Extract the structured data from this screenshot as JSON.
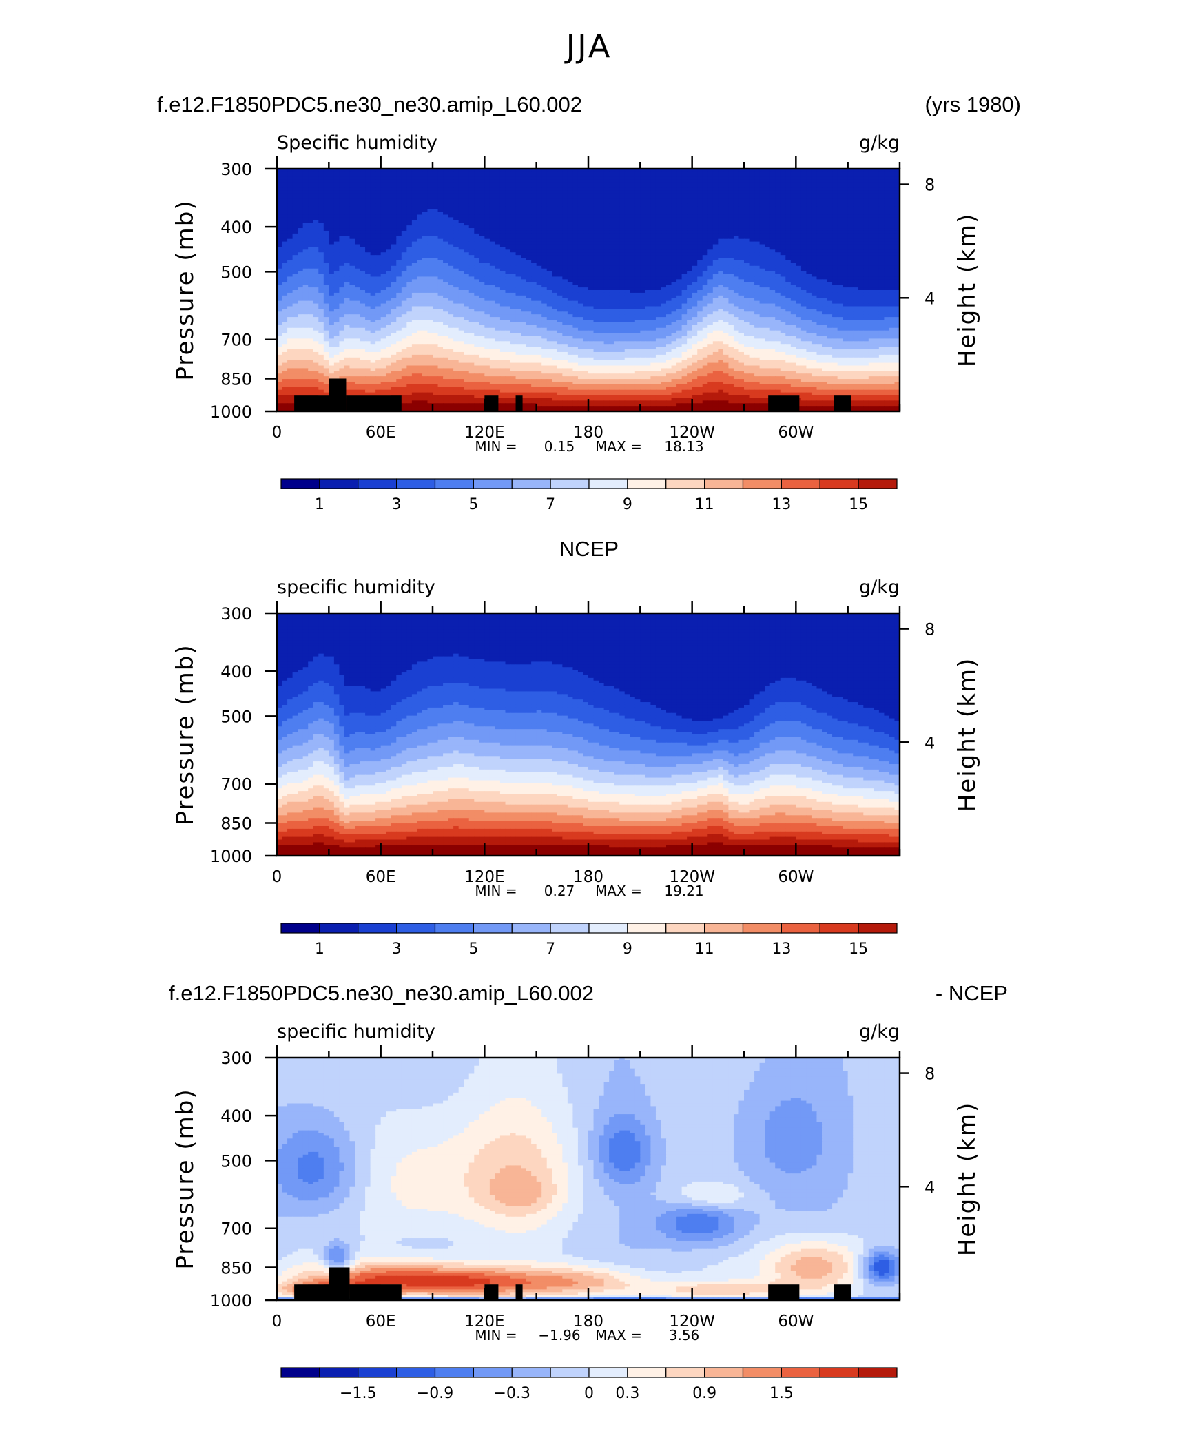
{
  "page_title": "JJA",
  "colors": {
    "blue_red_17": [
      "#00008b",
      "#0a1fb0",
      "#1a40d2",
      "#2e5ee4",
      "#4e7ef0",
      "#7299f6",
      "#98b5fa",
      "#c0d3fc",
      "#e3edfd",
      "#fff1e6",
      "#fdd6c0",
      "#f8b596",
      "#f28d66",
      "#ea6240",
      "#d83a1f",
      "#b51a0b",
      "#8b0000"
    ],
    "land_mask": "#000000"
  },
  "chart_data": [
    {
      "type": "heatmap",
      "header_left": "f.e12.F1850PDC5.ne30_ne30.amip_L60.002",
      "header_right": "(yrs 1980)",
      "header_center": "",
      "title": "Specific humidity",
      "units": "g/kg",
      "ylabel": "Pressure (mb)",
      "ylabel_right": "Height (km)",
      "y_ticks": [
        "300",
        "400",
        "500",
        "700",
        "850",
        "1000"
      ],
      "y_tick_values": [
        300,
        400,
        500,
        700,
        850,
        1000
      ],
      "y_right_ticks": [
        "8",
        "4"
      ],
      "y_right_tick_values": [
        8,
        4
      ],
      "x_ticks": [
        "0",
        "60E",
        "120E",
        "180",
        "120W",
        "60W"
      ],
      "x_tick_values": [
        0,
        60,
        120,
        180,
        240,
        300
      ],
      "xlim": [
        0,
        360
      ],
      "ylim": [
        1000,
        300
      ],
      "y_scale": "log-pressure",
      "stats": {
        "min_label": "MIN =",
        "min": "0.15",
        "max_label": "MAX =",
        "max": "18.13"
      },
      "colorbar_labels": [
        "1",
        "3",
        "5",
        "7",
        "9",
        "11",
        "13",
        "15"
      ],
      "levels_start": 0,
      "levels_step": 1,
      "mode": "field",
      "top_profile": [
        395,
        380,
        345,
        325,
        330,
        352,
        385,
        408,
        405,
        368,
        338,
        315,
        318,
        330,
        345,
        362,
        375,
        392,
        408,
        432,
        458,
        472,
        482,
        488,
        492,
        496,
        500,
        502,
        498,
        482,
        455,
        425,
        395,
        378,
        370,
        378,
        395,
        418,
        440,
        458,
        470,
        478,
        488,
        495,
        500,
        502
      ],
      "bottom_value": 16.2,
      "perturb": [
        0.4,
        0.8,
        0.6,
        0.2,
        -0.9,
        0,
        0.2,
        0.1,
        0.5,
        0.7,
        0.9,
        0.7,
        0.5,
        0.3,
        0.2,
        0.1,
        0,
        0,
        0,
        0.1,
        0.1,
        0,
        -0.2,
        -0.3,
        -0.3,
        -0.2,
        -0.1,
        0,
        0.2,
        0.5,
        1.0,
        1.4,
        1.6,
        0.8,
        0.3,
        0.1,
        0.2,
        0.1,
        0,
        -0.1,
        -0.2,
        -0.3,
        -0.2,
        0,
        0.1,
        0.2
      ],
      "land_mask": [
        [
          10,
          30,
          925
        ],
        [
          30,
          40,
          850
        ],
        [
          40,
          72,
          925
        ],
        [
          120,
          128,
          925
        ],
        [
          138,
          142,
          925
        ],
        [
          284,
          302,
          925
        ],
        [
          322,
          332,
          925
        ]
      ]
    },
    {
      "type": "heatmap",
      "header_left": "",
      "header_right": "",
      "header_center": "NCEP",
      "title": "specific humidity",
      "units": "g/kg",
      "ylabel": "Pressure (mb)",
      "ylabel_right": "Height (km)",
      "y_ticks": [
        "300",
        "400",
        "500",
        "700",
        "850",
        "1000"
      ],
      "y_tick_values": [
        300,
        400,
        500,
        700,
        850,
        1000
      ],
      "y_right_ticks": [
        "8",
        "4"
      ],
      "y_right_tick_values": [
        8,
        4
      ],
      "x_ticks": [
        "0",
        "60E",
        "120E",
        "180",
        "120W",
        "60W"
      ],
      "x_tick_values": [
        0,
        60,
        120,
        180,
        240,
        300
      ],
      "xlim": [
        0,
        360
      ],
      "ylim": [
        1000,
        300
      ],
      "y_scale": "log-pressure",
      "stats": {
        "min_label": "MIN =",
        "min": "0.27",
        "max_label": "MAX =",
        "max": "19.21"
      },
      "colorbar_labels": [
        "1",
        "3",
        "5",
        "7",
        "9",
        "11",
        "13",
        "15"
      ],
      "levels_start": 0,
      "levels_step": 1,
      "mode": "field",
      "top_profile": [
        380,
        362,
        340,
        320,
        318,
        332,
        362,
        385,
        372,
        348,
        328,
        318,
        315,
        318,
        322,
        325,
        328,
        330,
        328,
        326,
        325,
        330,
        338,
        350,
        366,
        385,
        402,
        420,
        440,
        460,
        478,
        488,
        480,
        452,
        420,
        392,
        372,
        360,
        365,
        378,
        392,
        402,
        412,
        430,
        452,
        470
      ],
      "bottom_value": 16.6,
      "perturb": [
        0.3,
        0.6,
        0.5,
        0.8,
        0.4,
        -0.8,
        -0.2,
        0,
        0.1,
        0.2,
        0.2,
        0.3,
        0.4,
        0.6,
        0.5,
        0.4,
        0.4,
        0.3,
        0.3,
        0.3,
        0.2,
        0.1,
        0,
        -0.1,
        -0.1,
        0,
        0.1,
        0.2,
        0.4,
        0.8,
        1.2,
        1.6,
        1.8,
        0.6,
        0.3,
        0.4,
        0.5,
        0.4,
        0.3,
        0.2,
        0.1,
        0,
        0,
        0.1,
        0.2,
        0.2
      ],
      "land_mask": []
    },
    {
      "type": "heatmap",
      "header_left": "f.e12.F1850PDC5.ne30_ne30.amip_L60.002",
      "header_right": "- NCEP",
      "header_center": "",
      "title": "specific humidity",
      "units": "g/kg",
      "ylabel": "Pressure (mb)",
      "ylabel_right": "Height (km)",
      "y_ticks": [
        "300",
        "400",
        "500",
        "700",
        "850",
        "1000"
      ],
      "y_tick_values": [
        300,
        400,
        500,
        700,
        850,
        1000
      ],
      "y_right_ticks": [
        "8",
        "4"
      ],
      "y_right_tick_values": [
        8,
        4
      ],
      "x_ticks": [
        "0",
        "60E",
        "120E",
        "180",
        "120W",
        "60W"
      ],
      "x_tick_values": [
        0,
        60,
        120,
        180,
        240,
        300
      ],
      "xlim": [
        0,
        360
      ],
      "ylim": [
        1000,
        300
      ],
      "y_scale": "log-pressure",
      "stats": {
        "min_label": "MIN =",
        "min": "−1.96",
        "max_label": "MAX =",
        "max": "3.56"
      },
      "colorbar_labels": [
        "−1.5",
        "−0.9",
        "−0.3",
        "0",
        "0.3",
        "0.9",
        "1.5"
      ],
      "colorbar_label_positions": [
        2,
        4,
        6,
        8,
        9,
        11,
        13
      ],
      "levels_start": -2.4,
      "levels_step": 0.3,
      "mode": "diff",
      "blobs": [
        {
          "x": 78,
          "p": 560,
          "sx": 22,
          "sp": 130,
          "a": 0.6
        },
        {
          "x": 135,
          "p": 540,
          "sx": 28,
          "sp": 120,
          "a": 0.85
        },
        {
          "x": 142,
          "p": 590,
          "sx": 14,
          "sp": 40,
          "a": 0.4
        },
        {
          "x": 250,
          "p": 600,
          "sx": 16,
          "sp": 30,
          "a": 0.7
        },
        {
          "x": 70,
          "p": 900,
          "sx": 40,
          "sp": 55,
          "a": 1.8
        },
        {
          "x": 120,
          "p": 920,
          "sx": 35,
          "sp": 45,
          "a": 1.1
        },
        {
          "x": 180,
          "p": 910,
          "sx": 25,
          "sp": 50,
          "a": 1.0
        },
        {
          "x": 255,
          "p": 950,
          "sx": 35,
          "sp": 30,
          "a": 0.8
        },
        {
          "x": 310,
          "p": 850,
          "sx": 20,
          "sp": 80,
          "a": 1.4
        },
        {
          "x": 25,
          "p": 950,
          "sx": 20,
          "sp": 30,
          "a": 1.2
        },
        {
          "x": 22,
          "p": 520,
          "sx": 18,
          "sp": 90,
          "a": -1.0
        },
        {
          "x": 200,
          "p": 480,
          "sx": 12,
          "sp": 60,
          "a": -0.9
        },
        {
          "x": 245,
          "p": 680,
          "sx": 18,
          "sp": 60,
          "a": -1.1
        },
        {
          "x": 350,
          "p": 850,
          "sx": 8,
          "sp": 50,
          "a": -1.6
        },
        {
          "x": 290,
          "p": 450,
          "sx": 25,
          "sp": 100,
          "a": -0.5
        },
        {
          "x": 35,
          "p": 820,
          "sx": 6,
          "sp": 50,
          "a": -1.2
        }
      ],
      "land_mask": [
        [
          10,
          30,
          925
        ],
        [
          30,
          42,
          850
        ],
        [
          42,
          72,
          925
        ],
        [
          120,
          128,
          925
        ],
        [
          138,
          142,
          925
        ],
        [
          284,
          302,
          925
        ],
        [
          322,
          332,
          925
        ]
      ]
    }
  ]
}
